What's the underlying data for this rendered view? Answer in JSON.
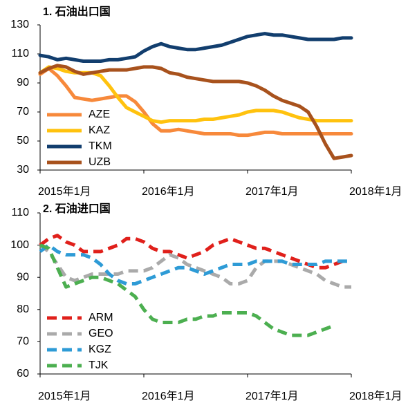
{
  "chart_data": [
    {
      "type": "line",
      "title": "1. 石油出口国",
      "dashed": false,
      "legend": "lower left",
      "categories": [
        "2015年1月",
        null,
        null,
        null,
        null,
        null,
        null,
        null,
        null,
        null,
        null,
        null,
        "2016年1月",
        null,
        null,
        null,
        null,
        null,
        null,
        null,
        null,
        null,
        null,
        null,
        "2017年1月",
        null,
        null,
        null,
        null,
        null,
        null,
        null,
        null,
        null,
        null,
        null,
        "2018年1月"
      ],
      "ylim": [
        30,
        130
      ],
      "yticks": [
        30,
        50,
        70,
        90,
        110,
        130
      ],
      "series": [
        {
          "name": "AZE",
          "color": "#f7893b",
          "values": [
            96,
            100,
            95,
            88,
            80,
            79,
            78,
            79,
            80,
            81,
            81,
            77,
            70,
            62,
            57,
            57,
            58,
            57,
            56,
            55,
            55,
            55,
            55,
            54,
            54,
            55,
            56,
            56,
            55,
            55,
            55,
            55,
            55,
            55,
            55,
            55,
            55
          ]
        },
        {
          "name": "KAZ",
          "color": "#ffc20e",
          "values": [
            97,
            101,
            100,
            98,
            97,
            97,
            97,
            95,
            88,
            80,
            73,
            70,
            67,
            64,
            63,
            64,
            64,
            64,
            64,
            65,
            65,
            66,
            67,
            68,
            70,
            71,
            71,
            71,
            70,
            68,
            66,
            65,
            64,
            64,
            64,
            64,
            64
          ]
        },
        {
          "name": "TKM",
          "color": "#123e6e",
          "values": [
            109,
            108,
            106,
            107,
            106,
            105,
            105,
            105,
            106,
            106,
            107,
            108,
            112,
            115,
            117,
            115,
            114,
            113,
            113,
            114,
            115,
            116,
            118,
            120,
            122,
            123,
            124,
            123,
            123,
            122,
            121,
            120,
            120,
            120,
            120,
            121,
            121
          ]
        },
        {
          "name": "UZB",
          "color": "#a8521d",
          "values": [
            97,
            100,
            102,
            101,
            98,
            96,
            97,
            98,
            99,
            99,
            99,
            100,
            101,
            101,
            100,
            97,
            96,
            94,
            93,
            92,
            91,
            91,
            91,
            91,
            90,
            88,
            85,
            81,
            78,
            76,
            74,
            70,
            60,
            48,
            38,
            39,
            40
          ]
        }
      ]
    },
    {
      "type": "line",
      "title": "2. 石油进口国",
      "dashed": true,
      "legend": "lower left",
      "categories": [
        "2015年1月",
        null,
        null,
        null,
        null,
        null,
        null,
        null,
        null,
        null,
        null,
        null,
        "2016年1月",
        null,
        null,
        null,
        null,
        null,
        null,
        null,
        null,
        null,
        null,
        null,
        "2017年1月",
        null,
        null,
        null,
        null,
        null,
        null,
        null,
        null,
        null,
        null,
        null,
        "2018年1月"
      ],
      "ylim": [
        60,
        110
      ],
      "yticks": [
        60,
        70,
        80,
        90,
        100,
        110
      ],
      "series": [
        {
          "name": "ARM",
          "color": "#e0201b",
          "values": [
            100,
            102,
            103,
            101,
            100,
            98,
            98,
            98,
            99,
            100,
            102,
            102,
            101,
            99,
            98,
            98,
            97,
            96,
            97,
            98,
            100,
            101,
            102,
            101,
            100,
            99,
            99,
            98,
            97,
            96,
            95,
            94,
            93,
            93,
            94,
            95,
            null
          ]
        },
        {
          "name": "GEO",
          "color": "#aaaaaa",
          "values": [
            100,
            98,
            94,
            90,
            89,
            90,
            91,
            91,
            91,
            91,
            92,
            92,
            92,
            93,
            95,
            97,
            96,
            94,
            93,
            92,
            91,
            90,
            88,
            88,
            89,
            93,
            95,
            95,
            95,
            94,
            93,
            92,
            91,
            89,
            88,
            87,
            87
          ]
        },
        {
          "name": "KGZ",
          "color": "#2e9bd6",
          "values": [
            98,
            100,
            98,
            97,
            97,
            97,
            96,
            94,
            91,
            89,
            88,
            88,
            89,
            90,
            91,
            92,
            93,
            93,
            92,
            91,
            92,
            93,
            94,
            94,
            94,
            95,
            95,
            95,
            95,
            94,
            94,
            94,
            94,
            95,
            95,
            95,
            95
          ]
        },
        {
          "name": "TJK",
          "color": "#4caf50",
          "values": [
            100,
            99,
            93,
            87,
            88,
            89,
            90,
            90,
            89,
            88,
            86,
            84,
            80,
            77,
            76,
            76,
            76,
            77,
            77,
            78,
            78,
            79,
            79,
            79,
            79,
            78,
            76,
            74,
            73,
            72,
            72,
            72,
            73,
            74,
            75,
            null,
            null
          ]
        }
      ]
    }
  ]
}
